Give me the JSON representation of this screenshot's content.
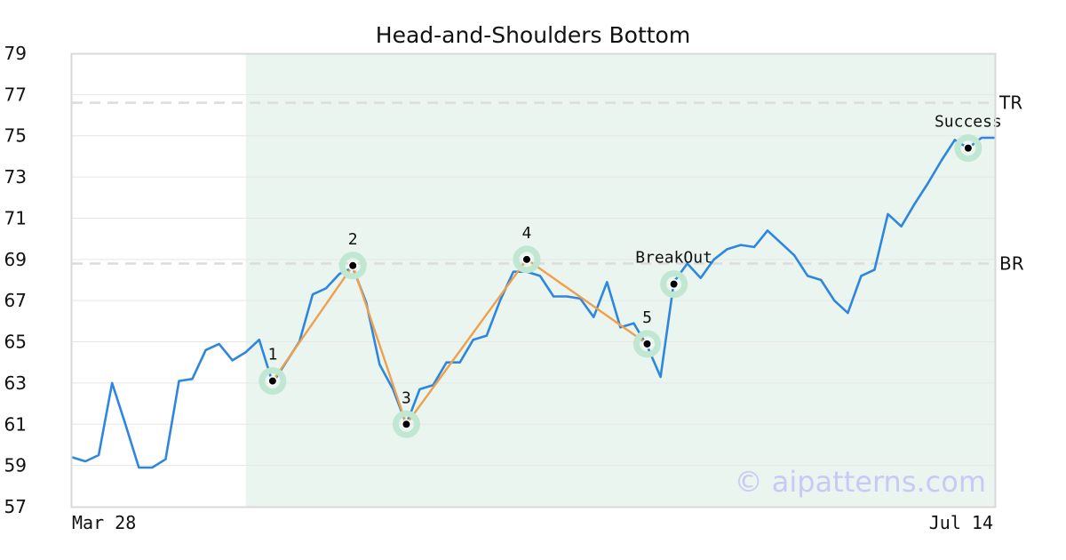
{
  "chart_data": {
    "type": "line",
    "title": "Head-and-Shoulders Bottom",
    "xlabel": "",
    "ylabel": "",
    "x_tick_labels": [
      "Mar 28",
      "Jul 14"
    ],
    "x_range": [
      0,
      69
    ],
    "ylim": [
      57,
      79
    ],
    "y_ticks": [
      57,
      59,
      61,
      63,
      65,
      67,
      69,
      71,
      73,
      75,
      77,
      79
    ],
    "grid": true,
    "pattern_region": [
      13,
      69
    ],
    "series": [
      {
        "color": "#2e86de",
        "values": [
          59.4,
          59.2,
          59.5,
          63.0,
          61.0,
          58.9,
          58.9,
          59.3,
          63.1,
          63.2,
          64.6,
          64.9,
          64.1,
          64.5,
          65.1,
          63.0,
          64.0,
          65.0,
          67.3,
          67.6,
          68.3,
          68.6,
          66.9,
          63.9,
          62.7,
          61.0,
          62.7,
          62.9,
          64.0,
          64.0,
          65.1,
          65.3,
          67.0,
          68.4,
          68.4,
          68.2,
          67.2,
          67.2,
          67.1,
          66.2,
          67.9,
          65.7,
          65.9,
          64.8,
          63.3,
          67.9,
          68.8,
          68.1,
          69.0,
          69.5,
          69.7,
          69.6,
          70.4,
          69.8,
          69.2,
          68.2,
          68.0,
          67.0,
          66.4,
          68.2,
          68.5,
          71.2,
          70.6,
          71.7,
          72.7,
          73.8,
          74.8,
          74.4,
          74.9,
          74.9
        ]
      }
    ],
    "pattern_line": {
      "color": "#f0a04b",
      "points": [
        {
          "x": 15,
          "y": 63.1,
          "label": "1"
        },
        {
          "x": 21,
          "y": 68.7,
          "label": "2"
        },
        {
          "x": 25,
          "y": 61.0,
          "label": "3"
        },
        {
          "x": 34,
          "y": 69.0,
          "label": "4"
        },
        {
          "x": 43,
          "y": 64.9,
          "label": "5"
        }
      ]
    },
    "events": [
      {
        "x": 45,
        "y": 67.8,
        "label": "BreakOut"
      },
      {
        "x": 67,
        "y": 74.4,
        "label": "Success"
      }
    ],
    "ref_lines": [
      {
        "y": 76.6,
        "label": "TR"
      },
      {
        "y": 68.8,
        "label": "BR"
      }
    ],
    "colors": {
      "price": "#2e86de",
      "pattern": "#f0a04b",
      "highlight": "#eaf5f0",
      "marker_halo": "#bfe7d2"
    },
    "watermark": "© aipatterns.com"
  }
}
